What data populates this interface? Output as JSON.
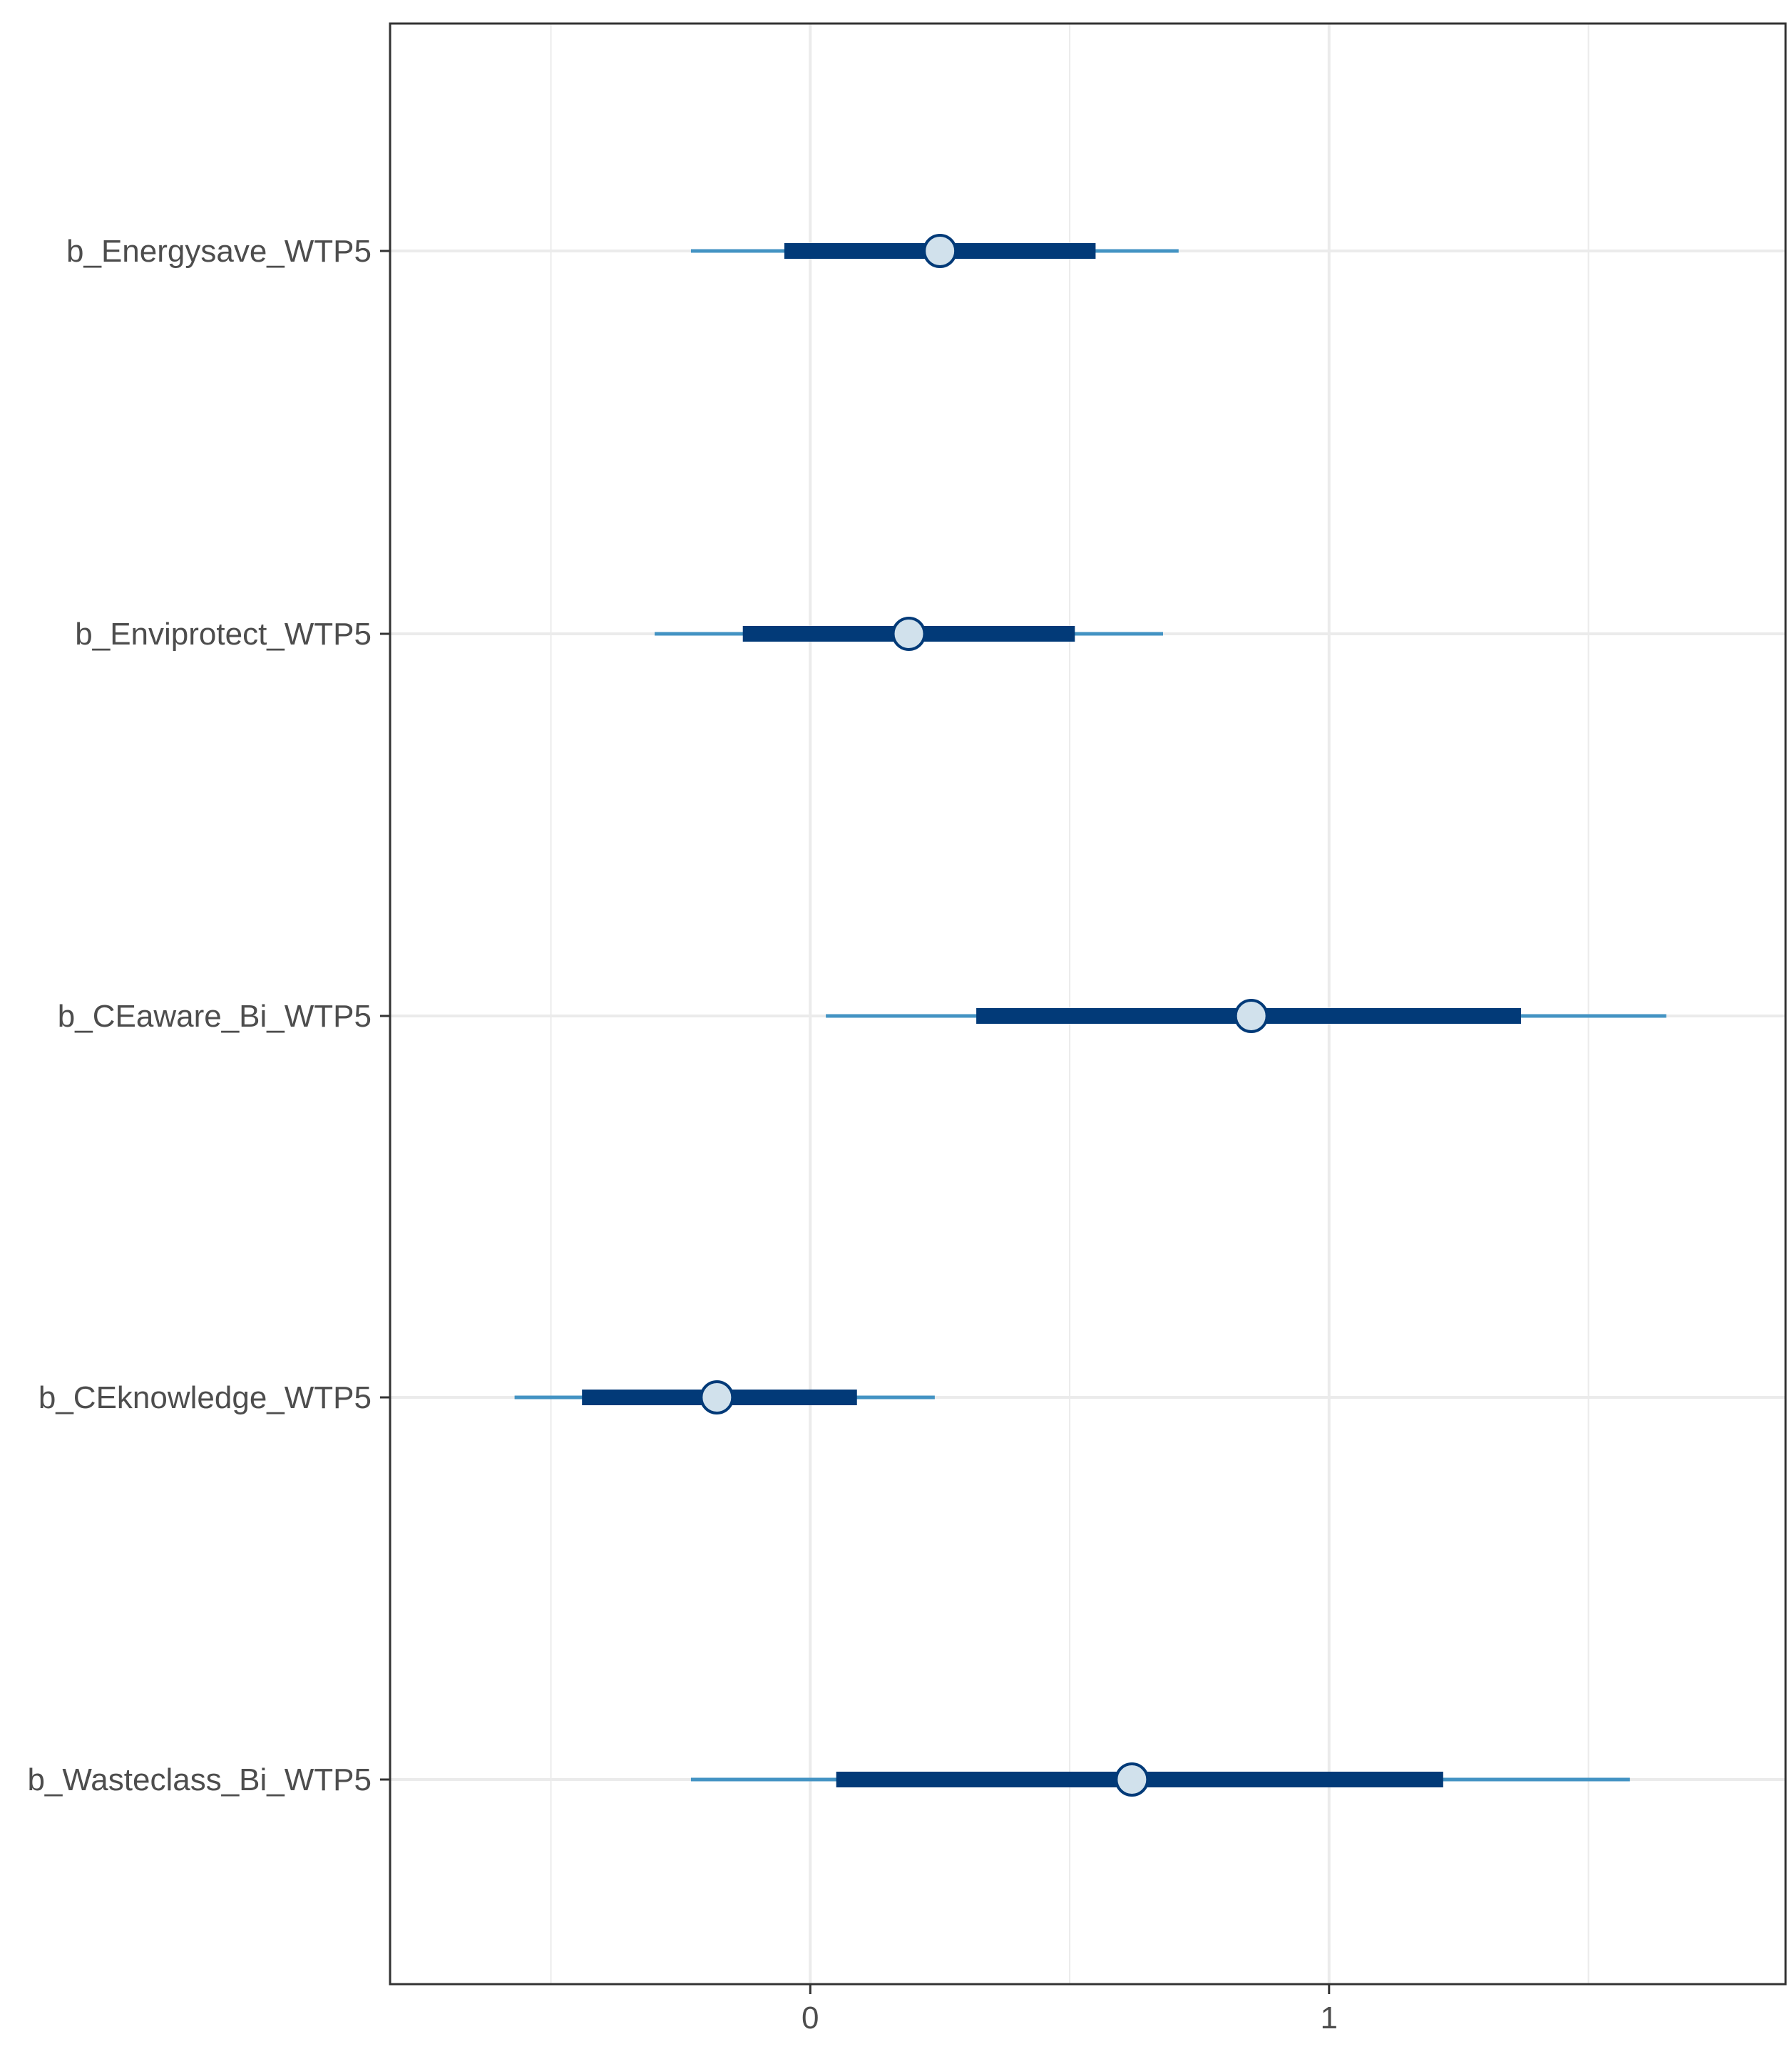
{
  "chart_data": {
    "type": "interval",
    "title": "",
    "xlabel": "",
    "ylabel": "",
    "xlim": [
      -0.81,
      1.88
    ],
    "x_ticks": [
      0,
      1
    ],
    "x_tick_labels": [
      "0",
      "1"
    ],
    "x_minor_gridlines": [
      -0.5,
      0.5,
      1.5
    ],
    "grid": true,
    "legend": "none",
    "categories": [
      "b_Energysave_WTP5",
      "b_Enviprotect_WTP5",
      "b_CEaware_Bi_WTP5",
      "b_CEknowledge_WTP5",
      "b_Wasteclass_Bi_WTP5"
    ],
    "series": [
      {
        "point": 0.25,
        "inner_interval": [
          -0.05,
          0.55
        ],
        "outer_interval": [
          -0.23,
          0.71
        ]
      },
      {
        "point": 0.19,
        "inner_interval": [
          -0.13,
          0.51
        ],
        "outer_interval": [
          -0.3,
          0.68
        ]
      },
      {
        "point": 0.85,
        "inner_interval": [
          0.32,
          1.37
        ],
        "outer_interval": [
          0.03,
          1.65
        ]
      },
      {
        "point": -0.18,
        "inner_interval": [
          -0.44,
          0.09
        ],
        "outer_interval": [
          -0.57,
          0.24
        ]
      },
      {
        "point": 0.62,
        "inner_interval": [
          0.05,
          1.22
        ],
        "outer_interval": [
          -0.23,
          1.58
        ]
      }
    ],
    "colors": {
      "outer_line": "#4393c3",
      "inner_line": "#023a78",
      "point_fill": "#d1e1ec",
      "point_stroke": "#023a78",
      "gridline": "#ebebeb",
      "panel_border": "#333333",
      "tick_text": "#4d4d4d"
    }
  }
}
